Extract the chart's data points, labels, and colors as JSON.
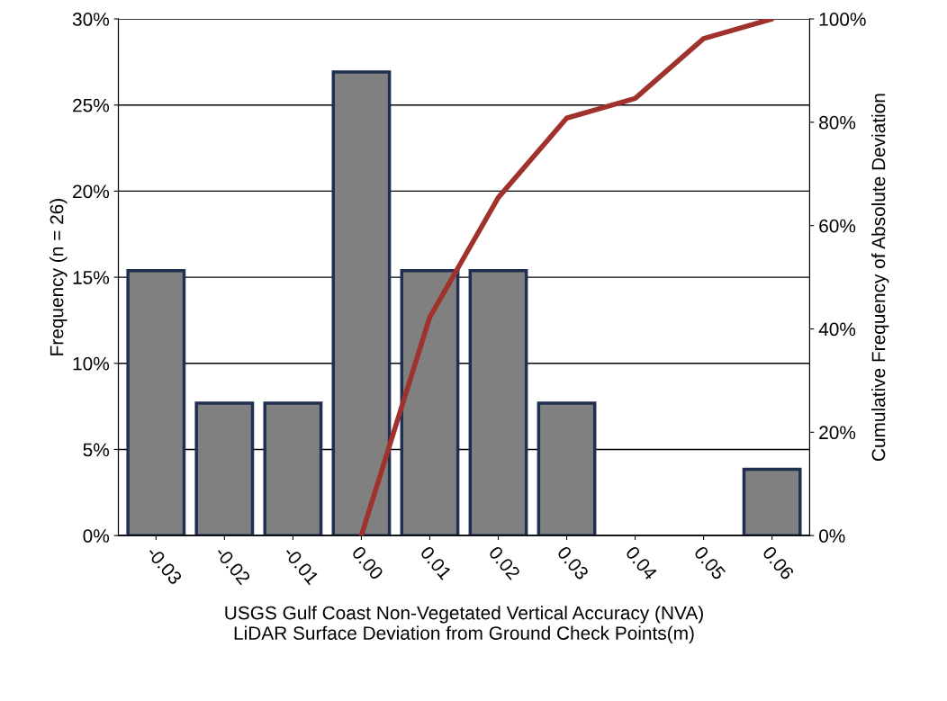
{
  "chart_data": {
    "type": "bar",
    "xlabel": "USGS Gulf Coast Non-Vegetated Vertical Accuracy (NVA)\nLiDAR Surface Deviation from Ground Check Points(m)",
    "ylabel": "Frequency (n = 26)",
    "y2label": "Cumulative Frequency of Absolute Deviation",
    "categories": [
      "-0.03",
      "-0.02",
      "-0.01",
      "0.00",
      "0.01",
      "0.02",
      "0.03",
      "0.04",
      "0.05",
      "0.06"
    ],
    "series": [
      {
        "color": "#808080",
        "values": [
          15.38,
          7.69,
          7.69,
          26.92,
          15.38,
          15.38,
          7.69,
          0,
          0,
          3.85
        ]
      },
      {
        "type": "line",
        "axis": "y2",
        "color": "#a0322d",
        "values": [
          null,
          null,
          null,
          0,
          42.3,
          65.4,
          80.8,
          84.6,
          96.2,
          100
        ]
      }
    ],
    "ylim": [
      0,
      30
    ],
    "yticks": [
      {
        "value": 0,
        "label": "0%"
      },
      {
        "value": 5,
        "label": "5%"
      },
      {
        "value": 10,
        "label": "10%"
      },
      {
        "value": 15,
        "label": "15%"
      },
      {
        "value": 20,
        "label": "20%"
      },
      {
        "value": 25,
        "label": "25%"
      },
      {
        "value": 30,
        "label": "30%"
      }
    ],
    "y2lim": [
      0,
      100
    ],
    "y2ticks": [
      {
        "value": 0,
        "label": "0%"
      },
      {
        "value": 20,
        "label": "20%"
      },
      {
        "value": 40,
        "label": "40%"
      },
      {
        "value": 60,
        "label": "60%"
      },
      {
        "value": 80,
        "label": "80%"
      },
      {
        "value": 100,
        "label": "100%"
      }
    ],
    "grid": "y",
    "legend": false
  }
}
